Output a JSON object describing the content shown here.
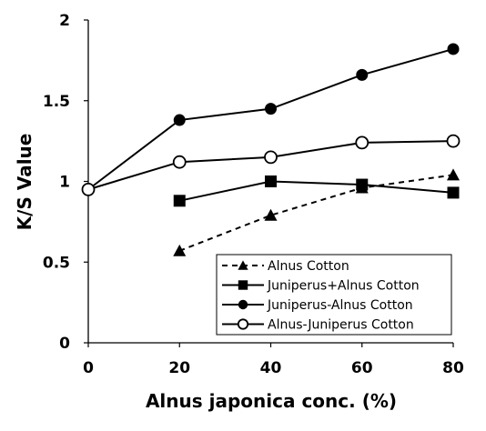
{
  "chart_data": {
    "type": "line",
    "xlabel": "Alnus japonica  conc. (%)",
    "ylabel": "K/S Value",
    "xlim": [
      0,
      80
    ],
    "ylim": [
      0,
      2
    ],
    "xticks": [
      "0",
      "20",
      "40",
      "60",
      "80"
    ],
    "yticks": [
      "0",
      "0.5",
      "1",
      "1.5",
      "2"
    ],
    "grid": false,
    "legend_position": "bottom-right",
    "series": [
      {
        "name": "Alnus Cotton",
        "marker": "triangle",
        "line_style": "dashed",
        "x": [
          20,
          40,
          60,
          80
        ],
        "y": [
          0.57,
          0.79,
          0.96,
          1.04
        ]
      },
      {
        "name": "Juniperus+Alnus Cotton",
        "marker": "square",
        "line_style": "solid",
        "x": [
          20,
          40,
          60,
          80
        ],
        "y": [
          0.88,
          1.0,
          0.98,
          0.93
        ]
      },
      {
        "name": "Juniperus-Alnus Cotton",
        "marker": "circle-filled",
        "line_style": "solid",
        "x": [
          0,
          20,
          40,
          60,
          80
        ],
        "y": [
          0.95,
          1.38,
          1.45,
          1.66,
          1.82
        ]
      },
      {
        "name": "Alnus-Juniperus Cotton",
        "marker": "circle-open",
        "line_style": "solid",
        "x": [
          0,
          20,
          40,
          60,
          80
        ],
        "y": [
          0.95,
          1.12,
          1.15,
          1.24,
          1.25
        ]
      }
    ]
  }
}
